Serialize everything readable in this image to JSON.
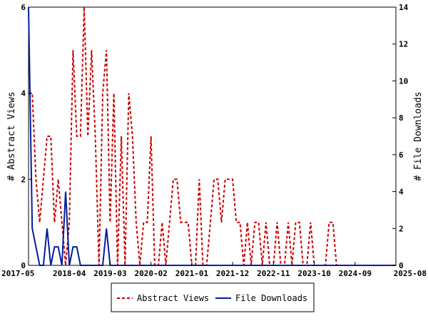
{
  "chart_data": {
    "type": "line",
    "title": "",
    "xlabel": "",
    "ylabel": "# Abstract Views",
    "y2label": "# File Downloads",
    "x_ticks": [
      "2017-05",
      "2018-04",
      "2019-03",
      "2020-02",
      "2021-01",
      "2021-12",
      "2022-11",
      "2023-10",
      "2024-09",
      "2025-08"
    ],
    "xlim": [
      "2017-05",
      "2025-08"
    ],
    "ylim": [
      0,
      6
    ],
    "y_ticks": [
      "0",
      "2",
      "4",
      "6"
    ],
    "y2lim": [
      0,
      14
    ],
    "y2_ticks": [
      "0",
      "2",
      "4",
      "6",
      "8",
      "10",
      "12",
      "14"
    ],
    "grid": false,
    "legend_position": "bottom",
    "series": [
      {
        "name": "Abstract Views",
        "axis": "left",
        "color": "#cc0000",
        "dash": true,
        "points": [
          [
            "2017-05",
            4
          ],
          [
            "2017-06",
            4
          ],
          [
            "2017-07",
            2
          ],
          [
            "2017-08",
            1
          ],
          [
            "2017-09",
            2
          ],
          [
            "2017-10",
            3
          ],
          [
            "2017-11",
            3
          ],
          [
            "2017-12",
            1
          ],
          [
            "2018-01",
            2
          ],
          [
            "2018-02",
            1
          ],
          [
            "2018-03",
            0
          ],
          [
            "2018-04",
            1
          ],
          [
            "2018-05",
            5
          ],
          [
            "2018-06",
            3
          ],
          [
            "2018-07",
            3
          ],
          [
            "2018-08",
            6
          ],
          [
            "2018-09",
            3
          ],
          [
            "2018-10",
            5
          ],
          [
            "2018-11",
            3
          ],
          [
            "2018-12",
            0
          ],
          [
            "2019-01",
            4
          ],
          [
            "2019-02",
            5
          ],
          [
            "2019-03",
            1
          ],
          [
            "2019-04",
            4
          ],
          [
            "2019-05",
            0
          ],
          [
            "2019-06",
            3
          ],
          [
            "2019-07",
            0
          ],
          [
            "2019-08",
            4
          ],
          [
            "2019-09",
            3
          ],
          [
            "2019-10",
            1
          ],
          [
            "2019-11",
            0
          ],
          [
            "2019-12",
            1
          ],
          [
            "2020-01",
            1
          ],
          [
            "2020-02",
            3
          ],
          [
            "2020-03",
            0
          ],
          [
            "2020-04",
            0
          ],
          [
            "2020-05",
            1
          ],
          [
            "2020-06",
            0
          ],
          [
            "2020-07",
            1
          ],
          [
            "2020-08",
            2
          ],
          [
            "2020-09",
            2
          ],
          [
            "2020-10",
            1
          ],
          [
            "2020-11",
            1
          ],
          [
            "2020-12",
            1
          ],
          [
            "2021-01",
            0
          ],
          [
            "2021-02",
            0
          ],
          [
            "2021-03",
            2
          ],
          [
            "2021-04",
            0
          ],
          [
            "2021-05",
            0
          ],
          [
            "2021-06",
            1
          ],
          [
            "2021-07",
            2
          ],
          [
            "2021-08",
            2
          ],
          [
            "2021-09",
            1
          ],
          [
            "2021-10",
            2
          ],
          [
            "2021-11",
            2
          ],
          [
            "2021-12",
            2
          ],
          [
            "2022-01",
            1
          ],
          [
            "2022-02",
            1
          ],
          [
            "2022-03",
            0
          ],
          [
            "2022-04",
            1
          ],
          [
            "2022-05",
            0
          ],
          [
            "2022-06",
            1
          ],
          [
            "2022-07",
            1
          ],
          [
            "2022-08",
            0
          ],
          [
            "2022-09",
            1
          ],
          [
            "2022-10",
            0
          ],
          [
            "2022-11",
            0
          ],
          [
            "2022-12",
            1
          ],
          [
            "2023-01",
            0
          ],
          [
            "2023-02",
            0
          ],
          [
            "2023-03",
            1
          ],
          [
            "2023-04",
            0
          ],
          [
            "2023-05",
            1
          ],
          [
            "2023-06",
            1
          ],
          [
            "2023-07",
            0
          ],
          [
            "2023-08",
            0
          ],
          [
            "2023-09",
            1
          ],
          [
            "2023-10",
            0
          ],
          [
            "2023-11",
            0
          ],
          [
            "2023-12",
            0
          ],
          [
            "2024-01",
            0
          ],
          [
            "2024-02",
            1
          ],
          [
            "2024-03",
            1
          ],
          [
            "2024-04",
            0
          ],
          [
            "2024-05",
            0
          ],
          [
            "2024-06",
            0
          ],
          [
            "2024-07",
            0
          ],
          [
            "2024-08",
            0
          ],
          [
            "2024-09",
            0
          ],
          [
            "2024-10",
            0
          ],
          [
            "2024-11",
            0
          ],
          [
            "2024-12",
            0
          ],
          [
            "2025-01",
            0
          ],
          [
            "2025-02",
            0
          ],
          [
            "2025-03",
            0
          ],
          [
            "2025-04",
            0
          ],
          [
            "2025-05",
            0
          ],
          [
            "2025-06",
            0
          ],
          [
            "2025-07",
            0
          ],
          [
            "2025-08",
            0
          ]
        ]
      },
      {
        "name": "File Downloads",
        "axis": "right",
        "color": "#001f9f",
        "dash": false,
        "points": [
          [
            "2017-05",
            14
          ],
          [
            "2017-06",
            2
          ],
          [
            "2017-07",
            1
          ],
          [
            "2017-08",
            0
          ],
          [
            "2017-09",
            0
          ],
          [
            "2017-10",
            2
          ],
          [
            "2017-11",
            0
          ],
          [
            "2017-12",
            1
          ],
          [
            "2018-01",
            1
          ],
          [
            "2018-02",
            0
          ],
          [
            "2018-03",
            4
          ],
          [
            "2018-04",
            0
          ],
          [
            "2018-05",
            1
          ],
          [
            "2018-06",
            1
          ],
          [
            "2018-07",
            0
          ],
          [
            "2018-08",
            0
          ],
          [
            "2018-09",
            0
          ],
          [
            "2018-10",
            0
          ],
          [
            "2018-11",
            0
          ],
          [
            "2018-12",
            0
          ],
          [
            "2019-01",
            0
          ],
          [
            "2019-02",
            2
          ],
          [
            "2019-03",
            0
          ],
          [
            "2019-04",
            0
          ],
          [
            "2019-05",
            0
          ],
          [
            "2019-06",
            0
          ],
          [
            "2019-07",
            0
          ],
          [
            "2019-08",
            0
          ],
          [
            "2019-09",
            0
          ],
          [
            "2019-10",
            0
          ],
          [
            "2019-11",
            0
          ],
          [
            "2019-12",
            0
          ],
          [
            "2020-01",
            0
          ],
          [
            "2020-02",
            0
          ],
          [
            "2020-03",
            0
          ],
          [
            "2020-04",
            0
          ],
          [
            "2020-05",
            0
          ],
          [
            "2020-06",
            0
          ],
          [
            "2020-07",
            0
          ],
          [
            "2020-08",
            0
          ],
          [
            "2020-09",
            0
          ],
          [
            "2020-10",
            0
          ],
          [
            "2020-11",
            0
          ],
          [
            "2020-12",
            0
          ],
          [
            "2021-01",
            0
          ],
          [
            "2021-02",
            0
          ],
          [
            "2021-03",
            0
          ],
          [
            "2021-04",
            0
          ],
          [
            "2021-05",
            0
          ],
          [
            "2021-06",
            0
          ],
          [
            "2021-07",
            0
          ],
          [
            "2021-08",
            0
          ],
          [
            "2021-09",
            0
          ],
          [
            "2021-10",
            0
          ],
          [
            "2021-11",
            0
          ],
          [
            "2021-12",
            0
          ],
          [
            "2022-01",
            0
          ],
          [
            "2022-02",
            0
          ],
          [
            "2022-03",
            0
          ],
          [
            "2022-04",
            0
          ],
          [
            "2022-05",
            0
          ],
          [
            "2022-06",
            0
          ],
          [
            "2022-07",
            0
          ],
          [
            "2022-08",
            0
          ],
          [
            "2022-09",
            0
          ],
          [
            "2022-10",
            0
          ],
          [
            "2022-11",
            0
          ],
          [
            "2022-12",
            0
          ],
          [
            "2023-01",
            0
          ],
          [
            "2023-02",
            0
          ],
          [
            "2023-03",
            0
          ],
          [
            "2023-04",
            0
          ],
          [
            "2023-05",
            0
          ],
          [
            "2023-06",
            0
          ],
          [
            "2023-07",
            0
          ],
          [
            "2023-08",
            0
          ],
          [
            "2023-09",
            0
          ],
          [
            "2023-10",
            0
          ],
          [
            "2023-11",
            0
          ],
          [
            "2023-12",
            0
          ],
          [
            "2024-01",
            0
          ],
          [
            "2024-02",
            0
          ],
          [
            "2024-03",
            0
          ],
          [
            "2024-04",
            0
          ],
          [
            "2024-05",
            0
          ],
          [
            "2024-06",
            0
          ],
          [
            "2024-07",
            0
          ],
          [
            "2024-08",
            0
          ],
          [
            "2024-09",
            0
          ],
          [
            "2024-10",
            0
          ],
          [
            "2024-11",
            0
          ],
          [
            "2024-12",
            0
          ],
          [
            "2025-01",
            0
          ],
          [
            "2025-02",
            0
          ],
          [
            "2025-03",
            0
          ],
          [
            "2025-04",
            0
          ],
          [
            "2025-05",
            0
          ],
          [
            "2025-06",
            0
          ],
          [
            "2025-07",
            0
          ],
          [
            "2025-08",
            0
          ]
        ]
      }
    ]
  }
}
